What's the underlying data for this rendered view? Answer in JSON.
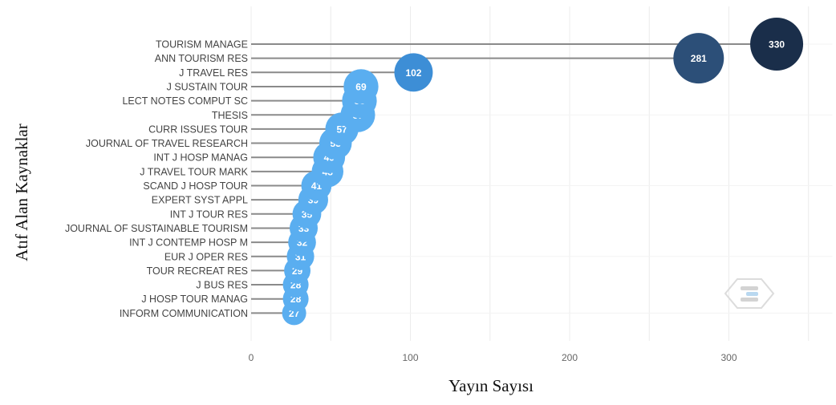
{
  "chart_data": {
    "type": "scatter",
    "subtype": "lollipop-bubble",
    "xlabel": "Yayın Sayısı",
    "ylabel": "Atıf Alan Kaynaklar",
    "xlim": [
      0,
      365
    ],
    "xticks": [
      0,
      100,
      200,
      300
    ],
    "grid": true,
    "categories": [
      "TOURISM MANAGE",
      "ANN TOURISM RES",
      "J TRAVEL RES",
      "J SUSTAIN TOUR",
      "LECT NOTES COMPUT SC",
      "THESIS",
      "CURR ISSUES TOUR",
      "JOURNAL OF TRAVEL RESEARCH",
      "INT J HOSP MANAG",
      "J TRAVEL TOUR MARK",
      "SCAND J HOSP TOUR",
      "EXPERT SYST APPL",
      "INT J TOUR RES",
      "JOURNAL OF SUSTAINABLE TOURISM",
      "INT J CONTEMP HOSP M",
      "EUR J OPER RES",
      "TOUR RECREAT RES",
      "J BUS RES",
      "J HOSP TOUR MANAG",
      "INFORM COMMUNICATION"
    ],
    "values": [
      330,
      281,
      102,
      69,
      68,
      67,
      57,
      53,
      49,
      48,
      41,
      39,
      35,
      33,
      32,
      31,
      29,
      28,
      28,
      27
    ],
    "colors": {
      "low": "#5aaef0",
      "mid": "#3d8ed6",
      "high": "#2c4f78",
      "max": "#1a2e4a",
      "stem": "#8a8a8a",
      "grid": "#ececec"
    }
  }
}
